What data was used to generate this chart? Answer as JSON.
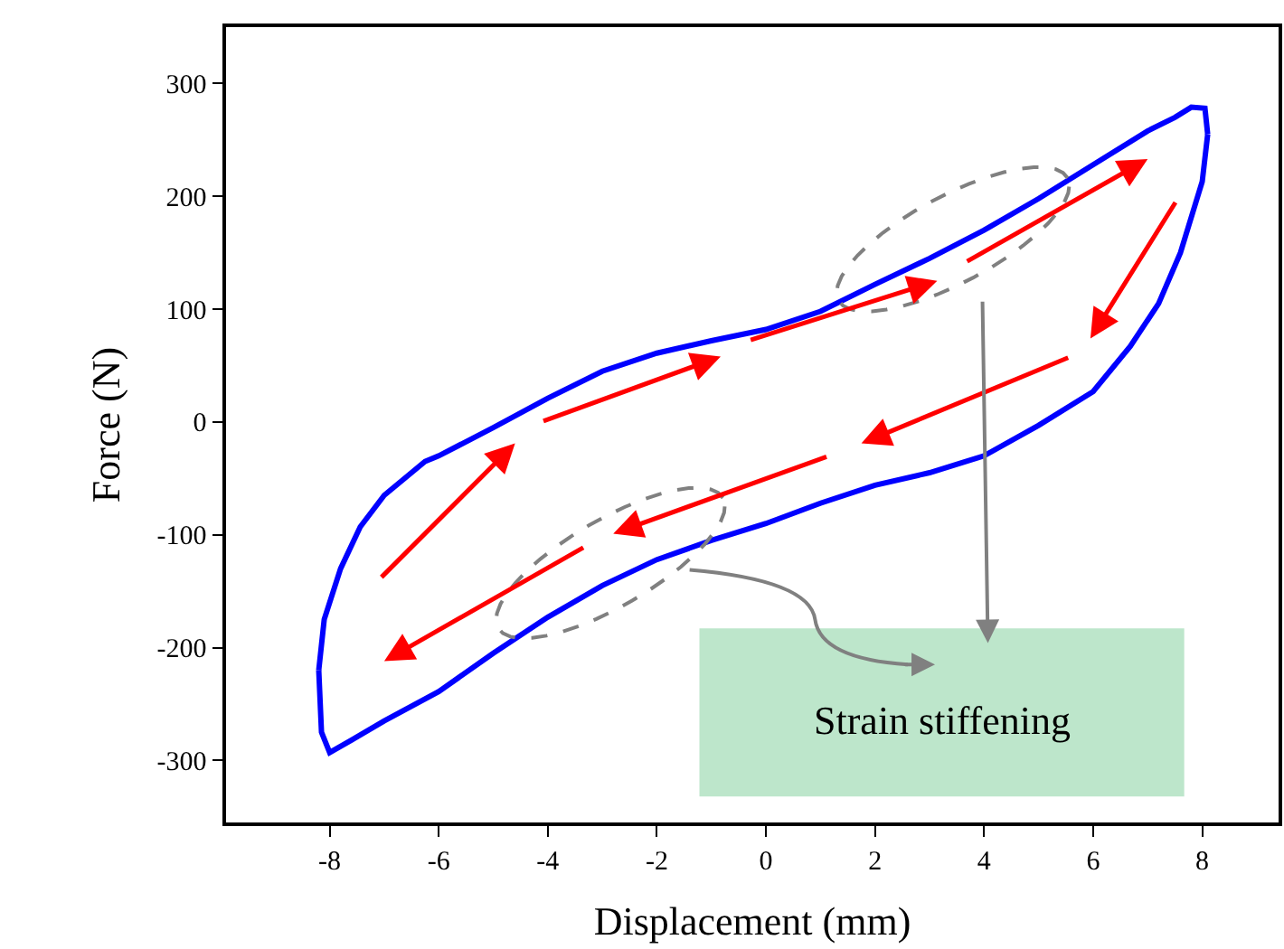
{
  "chart_data": {
    "type": "line",
    "xlabel": "Displacement (mm)",
    "ylabel": "Force (N)",
    "series": [
      {
        "color": "#0000ff",
        "x": [
          -8.2,
          -8.1,
          -7.8,
          -7.44,
          -7.0,
          -6.25,
          -6,
          -5,
          -4,
          -3,
          -2,
          -1,
          0,
          1,
          2,
          3,
          4,
          5,
          6,
          7,
          7.5,
          7.8,
          8.05,
          8.1,
          null,
          -8.2,
          -8.15,
          -8.0,
          -7.6,
          -7,
          -6,
          -5,
          -4,
          -3,
          -2,
          -1,
          0,
          1,
          2,
          3,
          4,
          5,
          6,
          6.68,
          7.2,
          7.6,
          8.0,
          8.1
        ],
        "values": [
          -220,
          -175,
          -130,
          -93,
          -65,
          -35,
          -30,
          -5,
          21,
          45,
          61,
          72,
          82,
          98,
          122,
          145,
          170,
          198,
          228,
          258,
          270,
          279,
          278,
          255,
          null,
          -220,
          -275,
          -293,
          -282,
          -265,
          -239,
          -205,
          -173,
          -145,
          -122,
          -105,
          -90,
          -72,
          -56,
          -45,
          -30,
          -3,
          27,
          67,
          105,
          150,
          213,
          255
        ]
      }
    ],
    "xlim": [
      -9.9,
      9.4
    ],
    "ylim": [
      -355,
      350
    ],
    "xticks": [
      -8,
      -6,
      -4,
      -2,
      0,
      2,
      4,
      6,
      8
    ],
    "yticks": [
      -300,
      -200,
      -100,
      0,
      100,
      200,
      300
    ],
    "grid": false,
    "legend": false,
    "annotations": [
      "Strain stiffening"
    ]
  }
}
